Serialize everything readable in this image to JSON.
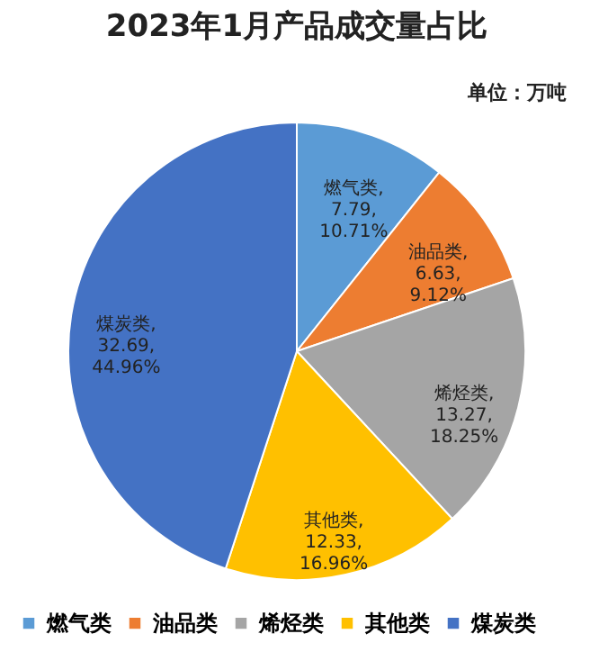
{
  "chart_data": {
    "type": "pie",
    "title": "2023年1月产品成交量占比",
    "subtitle": "单位：万吨",
    "categories": [
      "燃气类",
      "油品类",
      "烯烃类",
      "其他类",
      "煤炭类"
    ],
    "values": [
      7.79,
      6.63,
      13.27,
      12.33,
      32.69
    ],
    "colors": [
      "#5b9bd5",
      "#ed7d31",
      "#a5a5a5",
      "#ffc000",
      "#4472c4"
    ],
    "value_labels": [
      "燃气类,\n7.79,\n10.71%",
      "油品类,\n6.63,\n9.12%",
      "烯烃类,\n13.27,\n18.25%",
      "其他类,\n12.33,\n16.96%",
      "煤炭类,\n32.69,\n44.96%"
    ],
    "legend": "bottom"
  }
}
